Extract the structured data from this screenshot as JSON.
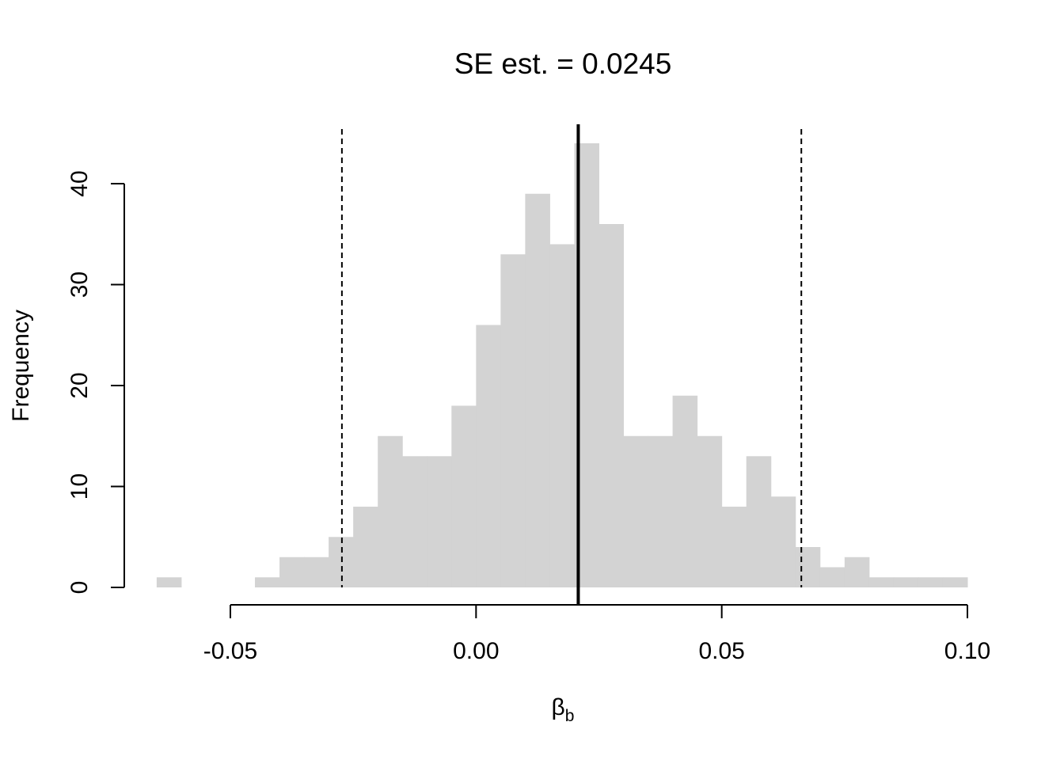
{
  "chart_data": {
    "type": "bar",
    "title": "SE est. = 0.0245",
    "xlabel": "β",
    "xlabel_subscript": "b",
    "ylabel": "Frequency",
    "bin_width": 0.005,
    "bins": [
      {
        "x0": -0.065,
        "x1": -0.06,
        "count": 1
      },
      {
        "x0": -0.06,
        "x1": -0.055,
        "count": 0
      },
      {
        "x0": -0.055,
        "x1": -0.05,
        "count": 0
      },
      {
        "x0": -0.05,
        "x1": -0.045,
        "count": 0
      },
      {
        "x0": -0.045,
        "x1": -0.04,
        "count": 1
      },
      {
        "x0": -0.04,
        "x1": -0.035,
        "count": 3
      },
      {
        "x0": -0.035,
        "x1": -0.03,
        "count": 3
      },
      {
        "x0": -0.03,
        "x1": -0.025,
        "count": 5
      },
      {
        "x0": -0.025,
        "x1": -0.02,
        "count": 8
      },
      {
        "x0": -0.02,
        "x1": -0.015,
        "count": 15
      },
      {
        "x0": -0.015,
        "x1": -0.01,
        "count": 13
      },
      {
        "x0": -0.01,
        "x1": -0.005,
        "count": 13
      },
      {
        "x0": -0.005,
        "x1": 0.0,
        "count": 18
      },
      {
        "x0": 0.0,
        "x1": 0.005,
        "count": 26
      },
      {
        "x0": 0.005,
        "x1": 0.01,
        "count": 33
      },
      {
        "x0": 0.01,
        "x1": 0.015,
        "count": 39
      },
      {
        "x0": 0.015,
        "x1": 0.02,
        "count": 34
      },
      {
        "x0": 0.02,
        "x1": 0.025,
        "count": 44
      },
      {
        "x0": 0.025,
        "x1": 0.03,
        "count": 36
      },
      {
        "x0": 0.03,
        "x1": 0.035,
        "count": 15
      },
      {
        "x0": 0.035,
        "x1": 0.04,
        "count": 15
      },
      {
        "x0": 0.04,
        "x1": 0.045,
        "count": 19
      },
      {
        "x0": 0.045,
        "x1": 0.05,
        "count": 15
      },
      {
        "x0": 0.05,
        "x1": 0.055,
        "count": 8
      },
      {
        "x0": 0.055,
        "x1": 0.06,
        "count": 13
      },
      {
        "x0": 0.06,
        "x1": 0.065,
        "count": 9
      },
      {
        "x0": 0.065,
        "x1": 0.07,
        "count": 4
      },
      {
        "x0": 0.07,
        "x1": 0.075,
        "count": 2
      },
      {
        "x0": 0.075,
        "x1": 0.08,
        "count": 3
      },
      {
        "x0": 0.08,
        "x1": 0.085,
        "count": 1
      },
      {
        "x0": 0.085,
        "x1": 0.09,
        "count": 1
      },
      {
        "x0": 0.09,
        "x1": 0.095,
        "count": 1
      },
      {
        "x0": 0.095,
        "x1": 0.1,
        "count": 1
      }
    ],
    "xlim": [
      -0.0718,
      0.1
    ],
    "ylim": [
      0,
      44
    ],
    "x_ticks": [
      {
        "value": -0.05,
        "label": "-0.05"
      },
      {
        "value": 0.0,
        "label": "0.00"
      },
      {
        "value": 0.05,
        "label": "0.05"
      },
      {
        "value": 0.1,
        "label": "0.10"
      }
    ],
    "y_ticks": [
      {
        "value": 0,
        "label": "0"
      },
      {
        "value": 10,
        "label": "10"
      },
      {
        "value": 20,
        "label": "20"
      },
      {
        "value": 30,
        "label": "30"
      },
      {
        "value": 40,
        "label": "40"
      }
    ],
    "vertical_lines": [
      {
        "x": 0.0208,
        "style": "solid",
        "role": "estimate"
      },
      {
        "x": -0.0273,
        "style": "dashed",
        "role": "lower-bound"
      },
      {
        "x": 0.0662,
        "style": "dashed",
        "role": "upper-bound"
      }
    ],
    "grid": false,
    "legend": "none",
    "colors": {
      "bar": "#d3d3d3",
      "line": "#000000"
    }
  }
}
